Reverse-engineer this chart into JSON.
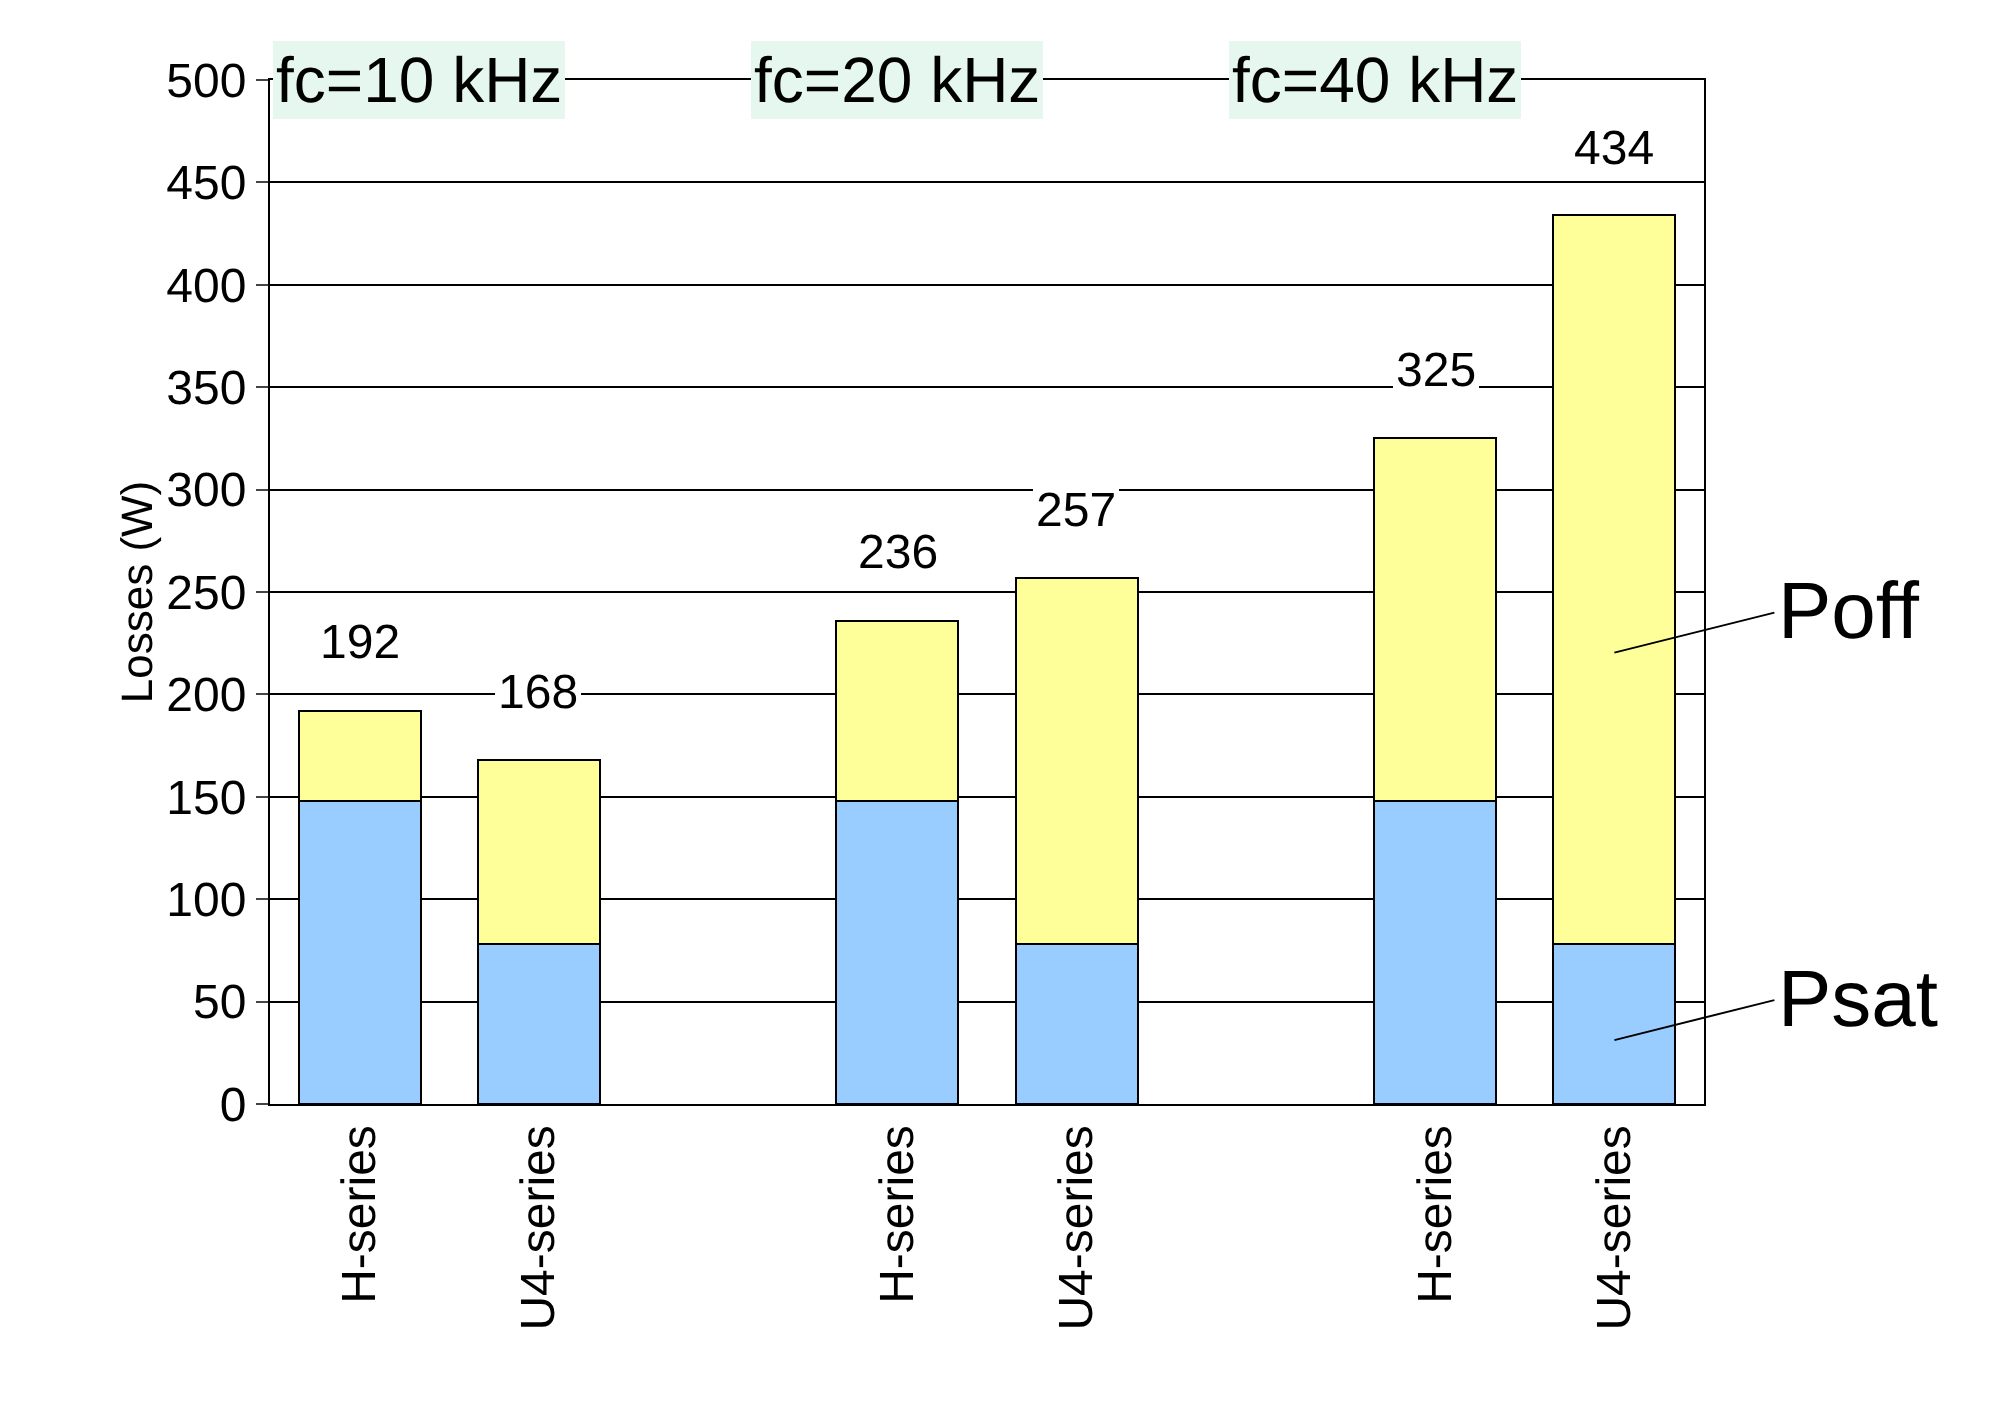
{
  "chart_data": {
    "type": "bar",
    "stacked": true,
    "ylabel": "Losses (W)",
    "categories": [
      "H-series",
      "U4-series",
      null,
      "H-series",
      "U4-series",
      null,
      "H-series",
      "U4-series"
    ],
    "series": [
      {
        "name": "Psat",
        "color": "#99ccff",
        "values": [
          148,
          78,
          null,
          148,
          78,
          null,
          148,
          78
        ]
      },
      {
        "name": "Poff",
        "color": "#ffff99",
        "values": [
          44,
          90,
          null,
          88,
          179,
          null,
          177,
          356
        ]
      }
    ],
    "totals": [
      "192",
      "168",
      null,
      "236",
      "257",
      null,
      "325",
      "434"
    ],
    "annotations": [
      "fc=10 kHz",
      "fc=20 kHz",
      "fc=40 kHz"
    ],
    "ylim": [
      0,
      500
    ],
    "yticks": [
      0,
      50,
      100,
      150,
      200,
      250,
      300,
      350,
      400,
      450,
      500
    ],
    "grid": "y",
    "legend": "right"
  }
}
